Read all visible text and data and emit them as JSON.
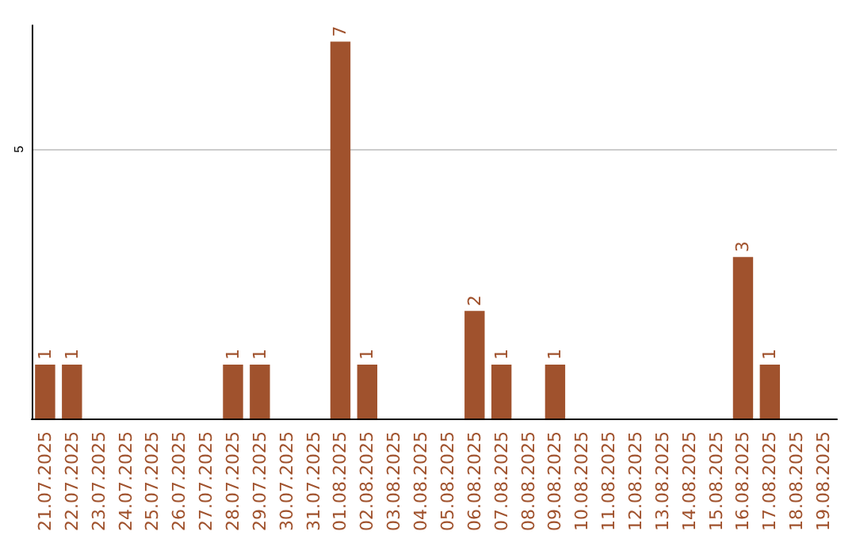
{
  "chart_data": {
    "type": "bar",
    "categories": [
      "21.07.2025",
      "22.07.2025",
      "23.07.2025",
      "24.07.2025",
      "25.07.2025",
      "26.07.2025",
      "27.07.2025",
      "28.07.2025",
      "29.07.2025",
      "30.07.2025",
      "31.07.2025",
      "01.08.2025",
      "02.08.2025",
      "03.08.2025",
      "04.08.2025",
      "05.08.2025",
      "06.08.2025",
      "07.08.2025",
      "08.08.2025",
      "09.08.2025",
      "10.08.2025",
      "11.08.2025",
      "12.08.2025",
      "13.08.2025",
      "14.08.2025",
      "15.08.2025",
      "16.08.2025",
      "17.08.2025",
      "18.08.2025",
      "19.08.2025"
    ],
    "values": [
      1,
      1,
      0,
      0,
      0,
      0,
      0,
      1,
      1,
      0,
      0,
      7,
      1,
      0,
      0,
      0,
      2,
      1,
      0,
      1,
      0,
      0,
      0,
      0,
      0,
      0,
      3,
      1,
      0,
      0
    ],
    "value_labels": [
      "1",
      "1",
      null,
      null,
      null,
      null,
      null,
      "1",
      "1",
      null,
      null,
      "7",
      "1",
      null,
      null,
      null,
      "2",
      "1",
      null,
      "1",
      null,
      null,
      null,
      null,
      null,
      null,
      "3",
      "1",
      null,
      null
    ],
    "color": "#a0522d",
    "ylim": [
      0,
      7.3
    ],
    "yticks": [
      5
    ],
    "grid": "y"
  }
}
